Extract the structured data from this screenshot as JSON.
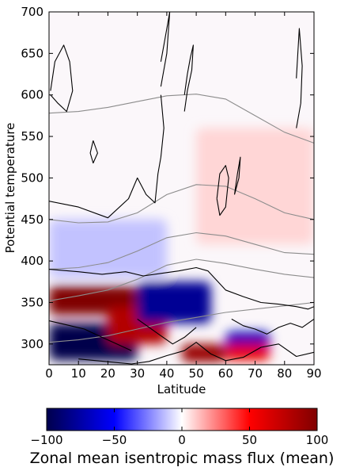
{
  "chart_data": [
    {
      "type": "heatmap",
      "xlabel": "Latitude",
      "ylabel": "Potential temperature",
      "xlim": [
        0,
        90
      ],
      "ylim": [
        275,
        700
      ],
      "xticks": [
        0,
        10,
        20,
        30,
        40,
        50,
        60,
        70,
        80,
        90
      ],
      "yticks": [
        300,
        350,
        400,
        450,
        500,
        550,
        600,
        650,
        700
      ],
      "grid": false,
      "colormap": "seismic",
      "clim": [
        -100,
        100
      ],
      "overlay_contours": "black (zero line) and gray (potential temperature levels)",
      "features": [
        {
          "kind": "positive",
          "lat": [
            0,
            30
          ],
          "theta": [
            335,
            370
          ],
          "value": 100
        },
        {
          "kind": "negative",
          "lat": [
            0,
            30
          ],
          "theta": [
            280,
            325
          ],
          "value": -100
        },
        {
          "kind": "positive",
          "lat": [
            20,
            40
          ],
          "theta": [
            300,
            345
          ],
          "value": 80
        },
        {
          "kind": "negative",
          "lat": [
            30,
            55
          ],
          "theta": [
            325,
            375
          ],
          "value": -80
        },
        {
          "kind": "positive",
          "lat": [
            45,
            60
          ],
          "theta": [
            278,
            300
          ],
          "value": 90
        },
        {
          "kind": "negative",
          "lat": [
            60,
            75
          ],
          "theta": [
            290,
            315
          ],
          "value": -70
        },
        {
          "kind": "positive",
          "lat": [
            60,
            75
          ],
          "theta": [
            280,
            300
          ],
          "value": 60
        },
        {
          "kind": "negative",
          "lat": [
            0,
            40
          ],
          "theta": [
            380,
            450
          ],
          "value": -12
        },
        {
          "kind": "positive",
          "lat": [
            50,
            90
          ],
          "theta": [
            420,
            560
          ],
          "value": 8
        }
      ],
      "gray_contours": [
        {
          "lat": [
            0,
            10,
            20,
            30,
            40,
            50,
            60,
            70,
            80,
            90
          ],
          "theta": [
            578,
            580,
            585,
            592,
            599,
            601,
            595,
            575,
            555,
            542
          ]
        },
        {
          "lat": [
            0,
            10,
            20,
            30,
            40,
            50,
            60,
            70,
            80,
            90
          ],
          "theta": [
            450,
            446,
            447,
            458,
            480,
            492,
            490,
            475,
            458,
            450
          ]
        },
        {
          "lat": [
            0,
            10,
            20,
            30,
            40,
            50,
            60,
            70,
            80,
            90
          ],
          "theta": [
            390,
            392,
            398,
            412,
            428,
            434,
            430,
            420,
            410,
            408
          ]
        },
        {
          "lat": [
            0,
            10,
            20,
            30,
            40,
            50,
            60,
            70,
            80,
            90
          ],
          "theta": [
            352,
            358,
            365,
            378,
            395,
            402,
            397,
            390,
            384,
            380
          ]
        },
        {
          "lat": [
            0,
            10,
            20,
            30,
            40,
            50,
            60,
            70,
            80,
            90
          ],
          "theta": [
            302,
            305,
            310,
            318,
            326,
            332,
            338,
            342,
            346,
            350
          ]
        }
      ],
      "black_contours": [
        {
          "lat": [
            0.5,
            2,
            5,
            7,
            8,
            6,
            3,
            0.5
          ],
          "theta": [
            605,
            640,
            660,
            640,
            605,
            580,
            590,
            600
          ]
        },
        {
          "lat": [
            15,
            16.5,
            15,
            14,
            15
          ],
          "theta": [
            545,
            530,
            518,
            530,
            545
          ]
        },
        {
          "lat": [
            0,
            10,
            20,
            27,
            30,
            33,
            36,
            37,
            38,
            39,
            38
          ],
          "theta": [
            472,
            465,
            452,
            475,
            500,
            480,
            470,
            505,
            525,
            560,
            600
          ]
        },
        {
          "lat": [
            38,
            39,
            40.5,
            41,
            40,
            38
          ],
          "theta": [
            640,
            660,
            690,
            700,
            650,
            610
          ]
        },
        {
          "lat": [
            46,
            47,
            48,
            49,
            48.5,
            47,
            46
          ],
          "theta": [
            600,
            625,
            645,
            660,
            630,
            605,
            580
          ]
        },
        {
          "lat": [
            84,
            85.5,
            86,
            85,
            84
          ],
          "theta": [
            560,
            590,
            635,
            680,
            620
          ]
        },
        {
          "lat": [
            57,
            58,
            60,
            61,
            60,
            58,
            57
          ],
          "theta": [
            475,
            505,
            515,
            500,
            465,
            455,
            475
          ]
        },
        {
          "lat": [
            63,
            64.5,
            65,
            64,
            63
          ],
          "theta": [
            480,
            500,
            525,
            505,
            480
          ]
        },
        {
          "lat": [
            0,
            10,
            18,
            26,
            32,
            38,
            44,
            50,
            54,
            60,
            66,
            72,
            78,
            84,
            88,
            90
          ],
          "theta": [
            390,
            387,
            384,
            387,
            382,
            385,
            388,
            392,
            388,
            365,
            357,
            350,
            348,
            345,
            342,
            345
          ]
        },
        {
          "lat": [
            0,
            6,
            12,
            18,
            23,
            28
          ],
          "theta": [
            328,
            323,
            318,
            308,
            300,
            292
          ]
        },
        {
          "lat": [
            10,
            16,
            22,
            28,
            34,
            40,
            46,
            50,
            55,
            60,
            66,
            72,
            78,
            84,
            90
          ],
          "theta": [
            282,
            280,
            278,
            276,
            279,
            286,
            292,
            302,
            288,
            280,
            284,
            296,
            300,
            285,
            290
          ]
        },
        {
          "lat": [
            30,
            34,
            38,
            42,
            46,
            50
          ],
          "theta": [
            330,
            320,
            310,
            300,
            308,
            320
          ]
        },
        {
          "lat": [
            62,
            66,
            70,
            74,
            78,
            82,
            86,
            90
          ],
          "theta": [
            330,
            322,
            318,
            312,
            320,
            325,
            320,
            330
          ]
        }
      ]
    },
    {
      "type": "colorbar",
      "label": "Zonal mean isentropic mass flux (mean)",
      "range": [
        -100,
        100
      ],
      "ticks": [
        -100,
        -50,
        0,
        50,
        100
      ],
      "tick_labels": [
        "−100",
        "−50",
        "0",
        "50",
        "100"
      ]
    }
  ]
}
